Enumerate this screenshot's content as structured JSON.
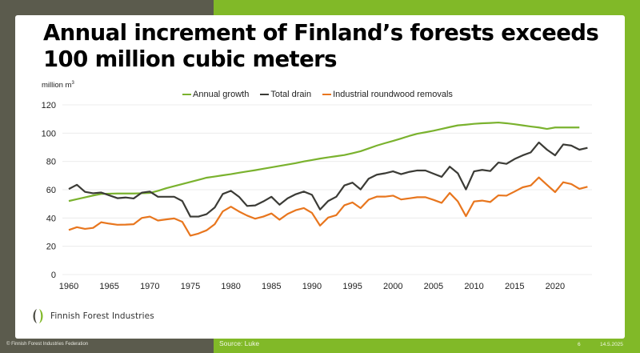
{
  "slide": {
    "title_line1": "Annual increment of Finland’s forests exceeds",
    "title_line2": "100 million cubic meters",
    "unit_label": "million m",
    "unit_superscript": "3",
    "logo_text": "Finnish Forest Industries",
    "footer_copyright": "© Finnish Forest Industries Federation",
    "footer_source": "Source: Luke",
    "page_number": "6",
    "date": "14.5.2025",
    "colors": {
      "brand_green": "#81b928",
      "brand_dark": "#5b5b4d"
    }
  },
  "chart_data": {
    "type": "line",
    "title": "Annual increment of Finland’s forests exceeds 100 million cubic meters",
    "ylabel": "million m³",
    "xlabel": "",
    "ylim": [
      0,
      120
    ],
    "yticks": [
      0,
      20,
      40,
      60,
      80,
      100,
      120
    ],
    "xlim": [
      1960,
      2024
    ],
    "xticks": [
      1960,
      1965,
      1970,
      1975,
      1980,
      1985,
      1990,
      1995,
      2000,
      2005,
      2010,
      2015,
      2020
    ],
    "grid": true,
    "legend_position": "top",
    "x": [
      1960,
      1961,
      1962,
      1963,
      1964,
      1965,
      1966,
      1967,
      1968,
      1969,
      1970,
      1971,
      1972,
      1973,
      1974,
      1975,
      1976,
      1977,
      1978,
      1979,
      1980,
      1981,
      1982,
      1983,
      1984,
      1985,
      1986,
      1987,
      1988,
      1989,
      1990,
      1991,
      1992,
      1993,
      1994,
      1995,
      1996,
      1997,
      1998,
      1999,
      2000,
      2001,
      2002,
      2003,
      2004,
      2005,
      2006,
      2007,
      2008,
      2009,
      2010,
      2011,
      2012,
      2013,
      2014,
      2015,
      2016,
      2017,
      2018,
      2019,
      2020,
      2021,
      2022,
      2023,
      2024
    ],
    "series": [
      {
        "name": "Annual growth",
        "color": "#7ab22e",
        "values": [
          52,
          53.3,
          54.6,
          55.9,
          57,
          57.2,
          57.3,
          57.3,
          57.3,
          57.5,
          57.7,
          59.2,
          61,
          62.5,
          64,
          65.5,
          67,
          68.5,
          69.3,
          70.2,
          71,
          72,
          72.9,
          73.8,
          74.8,
          75.8,
          76.8,
          77.8,
          78.8,
          80,
          81,
          82,
          82.9,
          83.7,
          84.5,
          85.8,
          87.2,
          89.2,
          91.2,
          92.9,
          94.5,
          96.2,
          98,
          99.6,
          100.6,
          101.7,
          103,
          104.3,
          105.5,
          106,
          106.6,
          107,
          107.2,
          107.5,
          107,
          106.3,
          105.5,
          104.7,
          104,
          103,
          104,
          104,
          104,
          104,
          null
        ]
      },
      {
        "name": "Total drain",
        "color": "#3b3b36",
        "values": [
          60.5,
          63.5,
          58.5,
          57.5,
          58,
          56,
          54,
          54.5,
          53.8,
          57.9,
          58.7,
          55,
          55,
          55,
          52,
          41,
          41,
          42.7,
          47.4,
          57,
          59.2,
          55,
          48.5,
          48.9,
          51.7,
          55,
          49.4,
          53.9,
          56.8,
          58.7,
          56.4,
          46,
          52,
          55,
          63,
          65,
          60.2,
          67.8,
          70.6,
          71.6,
          73,
          71,
          72.6,
          73.6,
          73.6,
          71.3,
          69.1,
          76.3,
          71.6,
          60.2,
          73,
          74,
          73.2,
          79.2,
          78.3,
          81.7,
          84.3,
          86.4,
          93.4,
          88.3,
          84.3,
          92,
          91.2,
          88.3,
          89.6
        ]
      },
      {
        "name": "Industrial roundwood removals",
        "color": "#e8761e",
        "values": [
          31.5,
          33.5,
          32.3,
          33,
          37,
          36,
          35.2,
          35.3,
          35.6,
          40,
          41,
          38.2,
          39,
          39.7,
          37.3,
          27.5,
          29,
          31.3,
          35.6,
          44.7,
          48,
          44.6,
          41.7,
          39.5,
          41,
          43.2,
          38.8,
          42.9,
          45.5,
          47,
          43.6,
          34.6,
          40.3,
          42,
          49,
          51,
          47,
          53,
          55.1,
          55.1,
          55.8,
          53.1,
          53.9,
          54.7,
          54.7,
          52.8,
          50.7,
          57.7,
          51.7,
          41.3,
          51.7,
          52.3,
          51.3,
          56,
          55.8,
          58.7,
          61.7,
          63,
          68.7,
          63.4,
          58.3,
          65.3,
          64,
          60.6,
          62.1
        ]
      }
    ]
  }
}
